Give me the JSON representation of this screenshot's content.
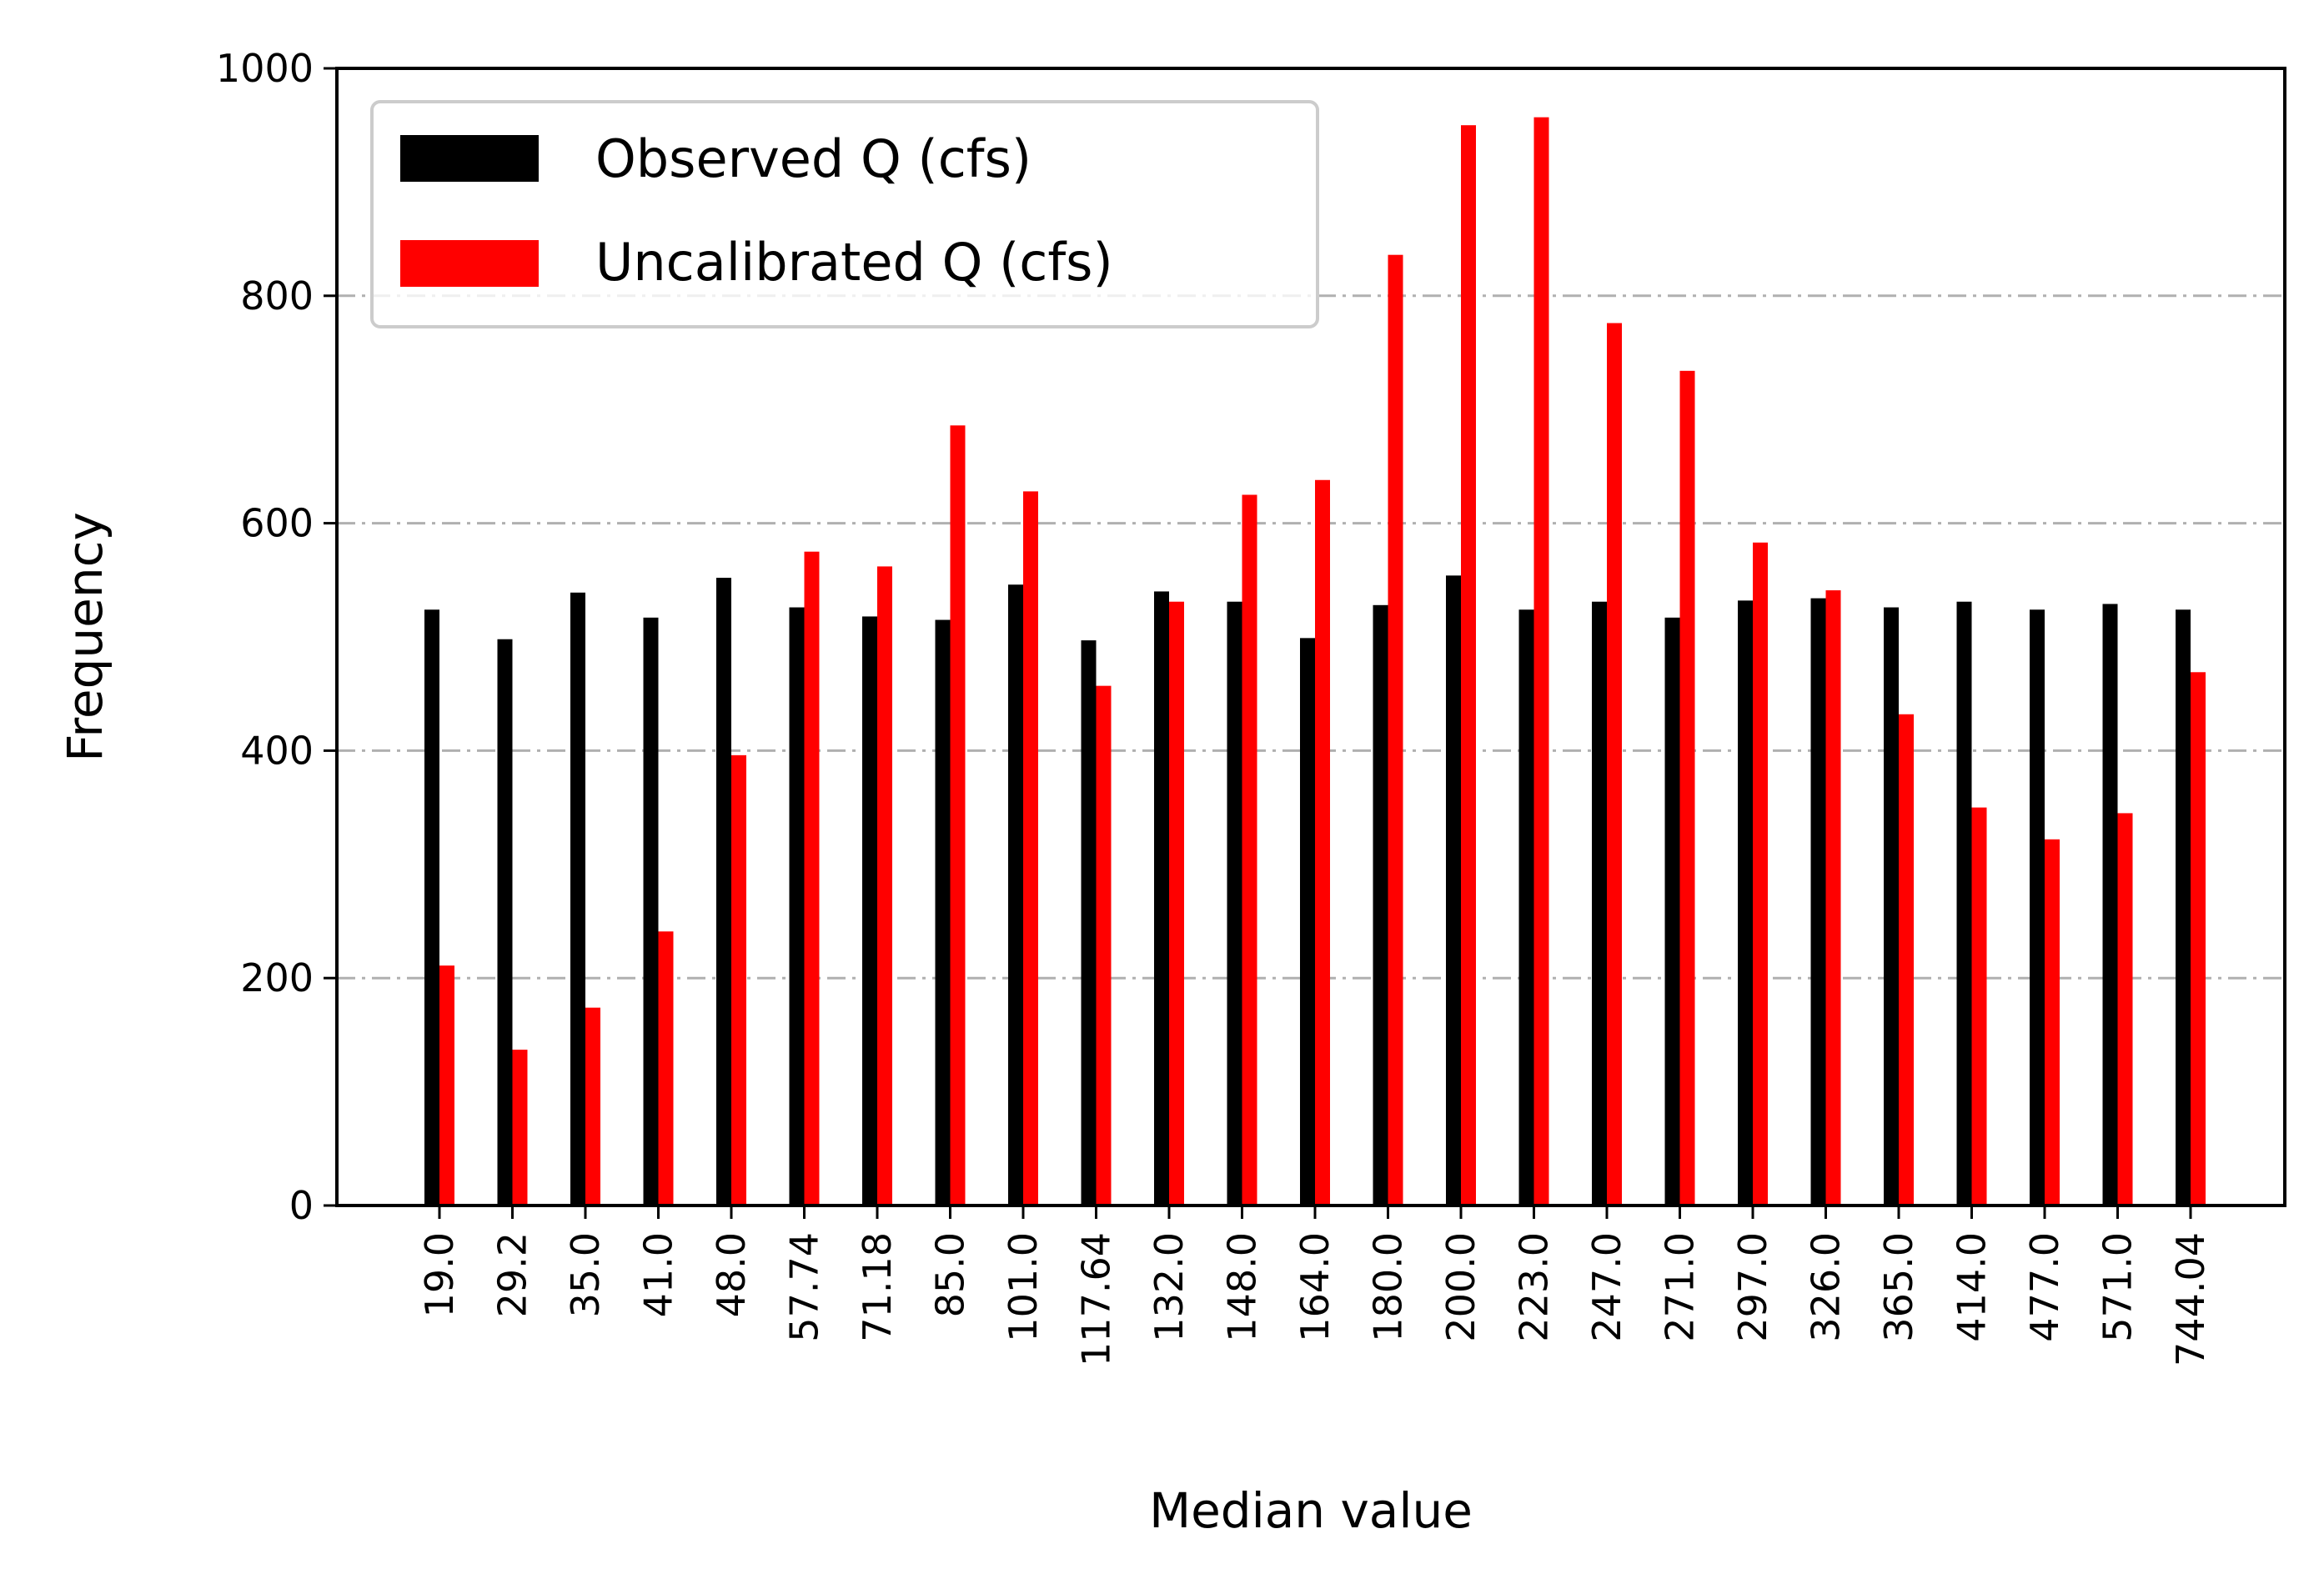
{
  "chart_data": {
    "type": "bar",
    "title": "",
    "xlabel": "Median value",
    "ylabel": "Frequency",
    "ylim": [
      0,
      1000
    ],
    "yticks": [
      0,
      200,
      400,
      600,
      800,
      1000
    ],
    "grid": "horizontal dash-dot",
    "legend_position": "top-left",
    "categories": [
      "19.0",
      "29.2",
      "35.0",
      "41.0",
      "48.0",
      "57.74",
      "71.18",
      "85.0",
      "101.0",
      "117.64",
      "132.0",
      "148.0",
      "164.0",
      "180.0",
      "200.0",
      "223.0",
      "247.0",
      "271.0",
      "297.0",
      "326.0",
      "365.0",
      "414.0",
      "477.0",
      "571.0",
      "744.04"
    ],
    "series": [
      {
        "name": "Observed Q (cfs)",
        "color": "#000000",
        "values": [
          524,
          498,
          539,
          517,
          552,
          526,
          518,
          515,
          546,
          497,
          540,
          531,
          499,
          528,
          554,
          524,
          531,
          517,
          532,
          534,
          526,
          531,
          524,
          529,
          524
        ]
      },
      {
        "name": "Uncalibrated Q (cfs)",
        "color": "#ff0000",
        "values": [
          211,
          137,
          174,
          241,
          396,
          575,
          562,
          686,
          628,
          457,
          531,
          625,
          638,
          836,
          950,
          957,
          776,
          734,
          583,
          541,
          432,
          350,
          322,
          345,
          469
        ]
      }
    ]
  }
}
